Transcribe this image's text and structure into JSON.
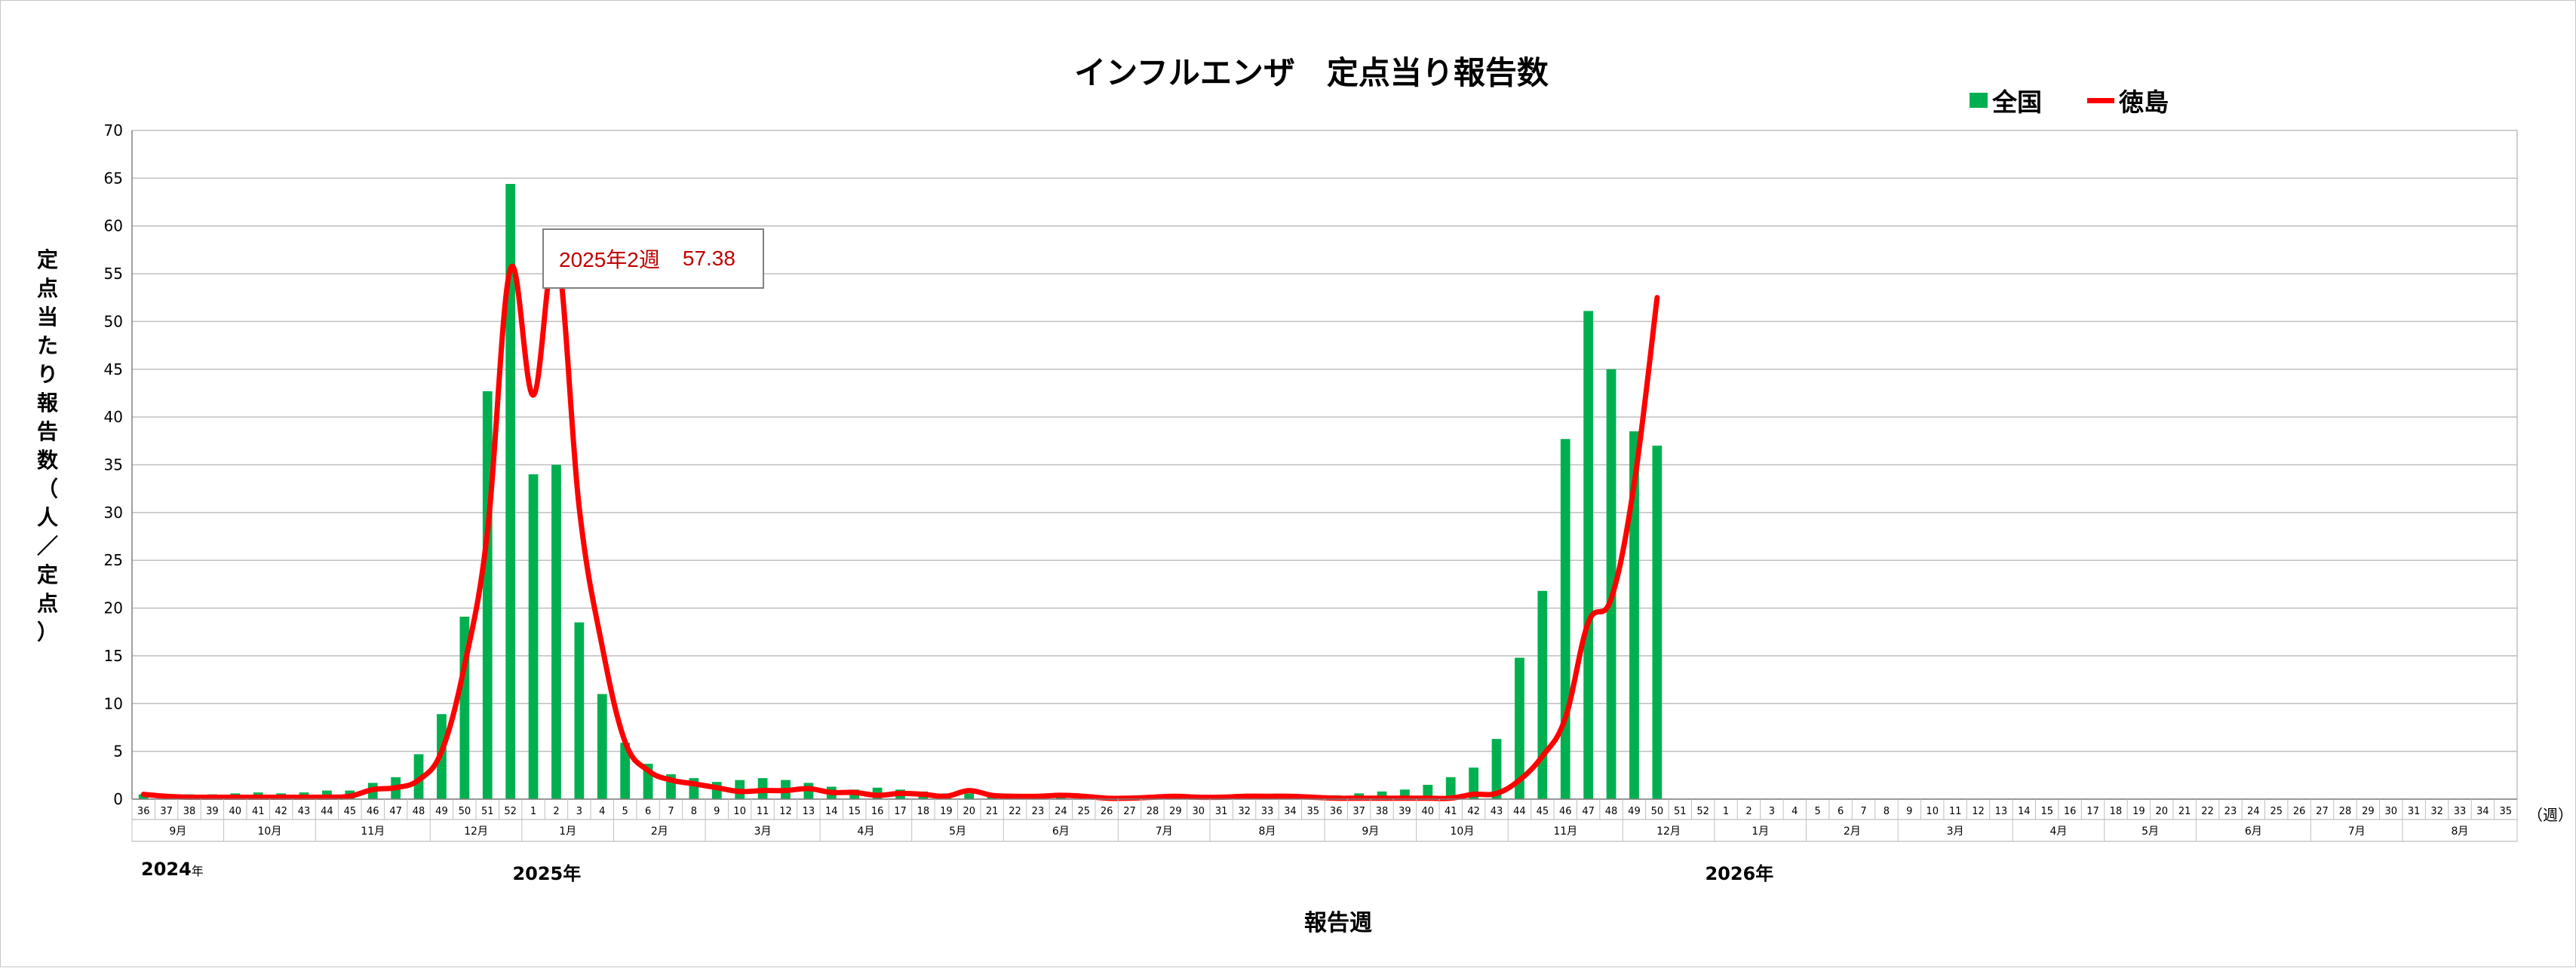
{
  "chart_data": {
    "type": "bar+line",
    "title": "インフルエンザ　定点当り報告数",
    "ylabel": "定点当たり報告数（人／定点）",
    "xlabel": "報告週",
    "x_unit": "（週）",
    "ylim": [
      0,
      70
    ],
    "yticks": [
      0,
      5,
      10,
      15,
      20,
      25,
      30,
      35,
      40,
      45,
      50,
      55,
      60,
      65,
      70
    ],
    "grid": true,
    "legend_position": "top-right",
    "weeks": [
      "36",
      "37",
      "38",
      "39",
      "40",
      "41",
      "42",
      "43",
      "44",
      "45",
      "46",
      "47",
      "48",
      "49",
      "50",
      "51",
      "52",
      "1",
      "2",
      "3",
      "4",
      "5",
      "6",
      "7",
      "8",
      "9",
      "10",
      "11",
      "12",
      "13",
      "14",
      "15",
      "16",
      "17",
      "18",
      "19",
      "20",
      "21",
      "22",
      "23",
      "24",
      "25",
      "26",
      "27",
      "28",
      "29",
      "30",
      "31",
      "32",
      "33",
      "34",
      "35",
      "36",
      "37",
      "38",
      "39",
      "40",
      "41",
      "42",
      "43",
      "44",
      "45",
      "46",
      "47",
      "48",
      "49",
      "50",
      "51",
      "52",
      "1",
      "2",
      "3",
      "4",
      "5",
      "6",
      "7",
      "8",
      "9",
      "10",
      "11",
      "12",
      "13",
      "14",
      "15",
      "16",
      "17",
      "18",
      "19",
      "20",
      "21",
      "22",
      "23",
      "24",
      "25",
      "26",
      "27",
      "28",
      "29",
      "30",
      "31",
      "32",
      "33",
      "34",
      "35"
    ],
    "months": [
      {
        "label": "9月",
        "start": 0,
        "end": 4
      },
      {
        "label": "10月",
        "start": 4,
        "end": 8
      },
      {
        "label": "11月",
        "start": 8,
        "end": 13
      },
      {
        "label": "12月",
        "start": 13,
        "end": 17
      },
      {
        "label": "1月",
        "start": 17,
        "end": 21
      },
      {
        "label": "2月",
        "start": 21,
        "end": 25
      },
      {
        "label": "3月",
        "start": 25,
        "end": 30
      },
      {
        "label": "4月",
        "start": 30,
        "end": 34
      },
      {
        "label": "5月",
        "start": 34,
        "end": 38
      },
      {
        "label": "6月",
        "start": 38,
        "end": 43
      },
      {
        "label": "7月",
        "start": 43,
        "end": 47
      },
      {
        "label": "8月",
        "start": 47,
        "end": 52
      },
      {
        "label": "9月",
        "start": 52,
        "end": 56
      },
      {
        "label": "10月",
        "start": 56,
        "end": 60
      },
      {
        "label": "11月",
        "start": 60,
        "end": 65
      },
      {
        "label": "12月",
        "start": 65,
        "end": 69
      },
      {
        "label": "1月",
        "start": 69,
        "end": 73
      },
      {
        "label": "2月",
        "start": 73,
        "end": 77
      },
      {
        "label": "3月",
        "start": 77,
        "end": 82
      },
      {
        "label": "4月",
        "start": 82,
        "end": 86
      },
      {
        "label": "5月",
        "start": 86,
        "end": 90
      },
      {
        "label": "6月",
        "start": 90,
        "end": 95
      },
      {
        "label": "7月",
        "start": 95,
        "end": 99
      },
      {
        "label": "8月",
        "start": 99,
        "end": 104
      }
    ],
    "years": [
      {
        "label": "2024",
        "suffix": "年",
        "at_week": 0
      },
      {
        "label": "2025年",
        "at_week": 16
      },
      {
        "label": "2026年",
        "at_week": 68
      }
    ],
    "series": [
      {
        "name": "全国",
        "kind": "bar",
        "color": "#00b050",
        "values": [
          0.5,
          0.4,
          0.5,
          0.5,
          0.6,
          0.7,
          0.6,
          0.7,
          0.9,
          0.9,
          1.7,
          2.3,
          4.7,
          8.9,
          19.1,
          42.7,
          64.4,
          34.0,
          35.0,
          18.5,
          11.0,
          5.9,
          3.7,
          2.6,
          2.2,
          1.8,
          2.0,
          2.2,
          2.0,
          1.7,
          1.3,
          1.0,
          1.2,
          1.0,
          0.8,
          0.6,
          0.6,
          0.4,
          0.3,
          0.3,
          0.3,
          0.2,
          0.2,
          0.2,
          0.2,
          0.2,
          0.2,
          0.2,
          0.3,
          0.3,
          0.3,
          0.3,
          0.4,
          0.6,
          0.8,
          1.0,
          1.5,
          2.3,
          3.3,
          6.3,
          14.8,
          21.8,
          37.7,
          51.1,
          45.0,
          38.5,
          37.0,
          null,
          null,
          null,
          null,
          null,
          null,
          null,
          null,
          null,
          null,
          null,
          null,
          null,
          null,
          null,
          null,
          null,
          null,
          null,
          null,
          null,
          null,
          null,
          null,
          null,
          null,
          null,
          null,
          null,
          null,
          null,
          null,
          null,
          null,
          null,
          null,
          null
        ]
      },
      {
        "name": "徳島",
        "kind": "line",
        "color": "#ff0000",
        "values": [
          0.5,
          0.3,
          0.2,
          0.2,
          0.2,
          0.2,
          0.2,
          0.2,
          0.2,
          0.3,
          1.0,
          1.2,
          2.0,
          5.0,
          14.0,
          28.0,
          55.5,
          42.3,
          57.38,
          30.5,
          16.0,
          6.0,
          3.0,
          2.0,
          1.6,
          1.2,
          0.8,
          0.9,
          0.9,
          1.1,
          0.7,
          0.7,
          0.4,
          0.6,
          0.5,
          0.3,
          0.9,
          0.4,
          0.3,
          0.3,
          0.4,
          0.3,
          0.1,
          0.1,
          0.2,
          0.3,
          0.2,
          0.2,
          0.3,
          0.3,
          0.3,
          0.2,
          0.1,
          0.1,
          0.1,
          0.1,
          0.1,
          0.1,
          0.5,
          0.6,
          2.0,
          4.5,
          8.5,
          18.5,
          21.0,
          33.0,
          52.5,
          null,
          null,
          null,
          null,
          null,
          null,
          null,
          null,
          null,
          null,
          null,
          null,
          null,
          null,
          null,
          null,
          null,
          null,
          null,
          null,
          null,
          null,
          null,
          null,
          null,
          null,
          null,
          null,
          null,
          null,
          null,
          null,
          null,
          null,
          null,
          null,
          null
        ]
      }
    ],
    "annotation": {
      "week_index": 18,
      "label": "2025年2週",
      "value": "57.38"
    }
  }
}
